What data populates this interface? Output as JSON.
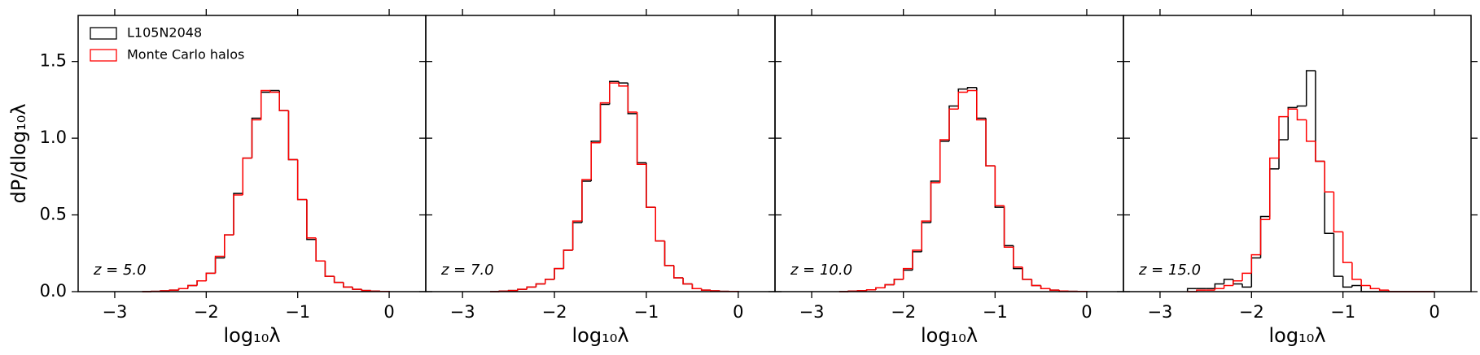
{
  "chart_data": [
    {
      "type": "histogram",
      "ylabel": "dP/dlog₁₀λ",
      "xlabel": "log₁₀λ",
      "annotation": "z = 5.0",
      "legend": "upper left",
      "xlim": [
        -3.4,
        0.4
      ],
      "ylim": [
        0,
        1.8
      ],
      "xticks": [
        {
          "value": -3,
          "label": "−3"
        },
        {
          "value": -2,
          "label": "−2"
        },
        {
          "value": -1,
          "label": "−1"
        },
        0
      ],
      "yticks": [
        {
          "value": 0,
          "label": "0.0"
        },
        0.5,
        {
          "value": 1,
          "label": "1.0"
        },
        1.5
      ],
      "bins": [
        -2.7,
        -2.6,
        -2.5,
        -2.4,
        -2.3,
        -2.2,
        -2.1,
        -2.0,
        -1.9,
        -1.8,
        -1.7,
        -1.6,
        -1.5,
        -1.4,
        -1.3,
        -1.2,
        -1.1,
        -1.0,
        -0.9,
        -0.8,
        -0.7,
        -0.6,
        -0.5,
        -0.4,
        -0.3,
        -0.2,
        -0.1,
        0.0
      ],
      "series": [
        {
          "name": "L105N2048",
          "color": "#000000",
          "values": [
            0,
            0.002,
            0.005,
            0.01,
            0.02,
            0.04,
            0.07,
            0.12,
            0.22,
            0.37,
            0.64,
            0.87,
            1.13,
            1.3,
            1.31,
            1.18,
            0.86,
            0.6,
            0.34,
            0.2,
            0.1,
            0.06,
            0.03,
            0.015,
            0.007,
            0.003,
            0.001
          ]
        },
        {
          "name": "Monte Carlo halos",
          "color": "#ff0000",
          "values": [
            0,
            0.002,
            0.005,
            0.01,
            0.02,
            0.04,
            0.07,
            0.12,
            0.23,
            0.37,
            0.63,
            0.87,
            1.12,
            1.31,
            1.3,
            1.18,
            0.86,
            0.6,
            0.35,
            0.2,
            0.1,
            0.06,
            0.03,
            0.015,
            0.007,
            0.003,
            0.001
          ]
        }
      ]
    },
    {
      "type": "histogram",
      "xlabel": "log₁₀λ",
      "annotation": "z = 7.0",
      "xlim": [
        -3.4,
        0.4
      ],
      "ylim": [
        0,
        1.8
      ],
      "xticks": [
        {
          "value": -3,
          "label": "−3"
        },
        {
          "value": -2,
          "label": "−2"
        },
        {
          "value": -1,
          "label": "−1"
        },
        0
      ],
      "bins": [
        -2.7,
        -2.6,
        -2.5,
        -2.4,
        -2.3,
        -2.2,
        -2.1,
        -2.0,
        -1.9,
        -1.8,
        -1.7,
        -1.6,
        -1.5,
        -1.4,
        -1.3,
        -1.2,
        -1.1,
        -1.0,
        -0.9,
        -0.8,
        -0.7,
        -0.6,
        -0.5,
        -0.4,
        -0.3,
        -0.2,
        -0.1,
        0.0
      ],
      "series": [
        {
          "color": "#000000",
          "values": [
            0,
            0.003,
            0.007,
            0.015,
            0.03,
            0.05,
            0.08,
            0.15,
            0.27,
            0.45,
            0.72,
            0.98,
            1.22,
            1.37,
            1.36,
            1.16,
            0.84,
            0.55,
            0.33,
            0.17,
            0.09,
            0.05,
            0.02,
            0.01,
            0.005,
            0.002,
            0.001
          ]
        },
        {
          "color": "#ff0000",
          "values": [
            0,
            0.003,
            0.007,
            0.015,
            0.03,
            0.05,
            0.08,
            0.15,
            0.27,
            0.46,
            0.73,
            0.97,
            1.23,
            1.36,
            1.34,
            1.17,
            0.83,
            0.55,
            0.33,
            0.17,
            0.09,
            0.05,
            0.02,
            0.01,
            0.005,
            0.002,
            0.001
          ]
        }
      ]
    },
    {
      "type": "histogram",
      "xlabel": "log₁₀λ",
      "annotation": "z = 10.0",
      "xlim": [
        -3.4,
        0.4
      ],
      "ylim": [
        0,
        1.8
      ],
      "xticks": [
        {
          "value": -3,
          "label": "−3"
        },
        {
          "value": -2,
          "label": "−2"
        },
        {
          "value": -1,
          "label": "−1"
        },
        0
      ],
      "bins": [
        -2.7,
        -2.6,
        -2.5,
        -2.4,
        -2.3,
        -2.2,
        -2.1,
        -2.0,
        -1.9,
        -1.8,
        -1.7,
        -1.6,
        -1.5,
        -1.4,
        -1.3,
        -1.2,
        -1.1,
        -1.0,
        -0.9,
        -0.8,
        -0.7,
        -0.6,
        -0.5,
        -0.4,
        -0.3,
        -0.2,
        -0.1,
        0.0
      ],
      "series": [
        {
          "color": "#000000",
          "values": [
            0,
            0.003,
            0.006,
            0.012,
            0.025,
            0.045,
            0.08,
            0.14,
            0.26,
            0.45,
            0.72,
            0.98,
            1.21,
            1.32,
            1.33,
            1.13,
            0.82,
            0.55,
            0.3,
            0.15,
            0.08,
            0.04,
            0.02,
            0.01,
            0.004,
            0.002,
            0.001
          ]
        },
        {
          "color": "#ff0000",
          "values": [
            0,
            0.003,
            0.006,
            0.012,
            0.025,
            0.045,
            0.08,
            0.15,
            0.27,
            0.46,
            0.71,
            0.99,
            1.19,
            1.3,
            1.31,
            1.12,
            0.82,
            0.56,
            0.29,
            0.16,
            0.08,
            0.04,
            0.02,
            0.01,
            0.004,
            0.002,
            0.001
          ]
        }
      ]
    },
    {
      "type": "histogram",
      "xlabel": "log₁₀λ",
      "annotation": "z = 15.0",
      "xlim": [
        -3.4,
        0.4
      ],
      "ylim": [
        0,
        1.8
      ],
      "xticks": [
        {
          "value": -3,
          "label": "−3"
        },
        {
          "value": -2,
          "label": "−2"
        },
        {
          "value": -1,
          "label": "−1"
        },
        0
      ],
      "bins": [
        -2.7,
        -2.6,
        -2.5,
        -2.4,
        -2.3,
        -2.2,
        -2.1,
        -2.0,
        -1.9,
        -1.8,
        -1.7,
        -1.6,
        -1.5,
        -1.4,
        -1.3,
        -1.2,
        -1.1,
        -1.0,
        -0.9,
        -0.8,
        -0.7,
        -0.6,
        -0.5,
        -0.4,
        -0.3,
        -0.2,
        -0.1,
        0.0
      ],
      "series": [
        {
          "color": "#000000",
          "values": [
            0.02,
            0.02,
            0.02,
            0.05,
            0.08,
            0.05,
            0.03,
            0.22,
            0.49,
            0.8,
            0.99,
            1.2,
            1.21,
            1.44,
            0.85,
            0.38,
            0.1,
            0.03,
            0.04,
            0,
            0,
            0,
            0,
            0,
            0,
            0,
            0
          ]
        },
        {
          "color": "#ff0000",
          "values": [
            0,
            0.01,
            0.01,
            0.02,
            0.04,
            0.07,
            0.12,
            0.24,
            0.47,
            0.87,
            1.14,
            1.19,
            1.12,
            0.98,
            0.85,
            0.65,
            0.39,
            0.19,
            0.08,
            0.04,
            0.02,
            0.01,
            0,
            0,
            0,
            0,
            0
          ]
        }
      ]
    }
  ]
}
